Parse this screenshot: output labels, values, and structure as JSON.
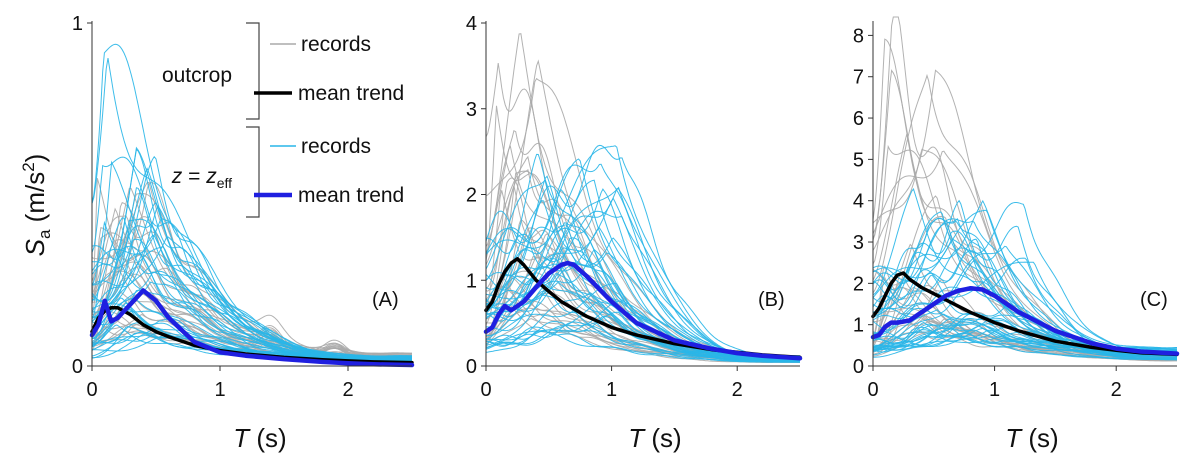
{
  "chart_data": [
    {
      "type": "line",
      "panel_label": "(A)",
      "xlim": [
        0,
        2.5
      ],
      "ylim": [
        0,
        1
      ],
      "x_ticks": [
        0,
        1,
        2
      ],
      "y_ticks": [
        0,
        1
      ],
      "xlabel": {
        "symbol": "T",
        "unit": " (s)"
      },
      "ylabel": {
        "symbol": "S",
        "sub": "a",
        "unit_pre": " (m/s",
        "unit_sup": "2",
        "unit_post": ")"
      },
      "legend": {
        "outcrop_label": "outcrop",
        "depth_label": {
          "z": "z",
          "eq": " = ",
          "zeff": "z",
          "sub": "eff"
        },
        "entries": [
          {
            "group": "outcrop",
            "name": "records",
            "color": "#aaaaaa"
          },
          {
            "group": "outcrop",
            "name": "mean trend",
            "color": "#000000"
          },
          {
            "group": "zeff",
            "name": "records",
            "color": "#29b6e8"
          },
          {
            "group": "zeff",
            "name": "mean trend",
            "color": "#1f1fe0"
          }
        ]
      },
      "series": [
        {
          "name": "outcrop mean trend",
          "color": "#000000",
          "x": [
            0,
            0.05,
            0.1,
            0.15,
            0.2,
            0.3,
            0.4,
            0.5,
            0.6,
            0.8,
            1.0,
            1.2,
            1.5,
            1.8,
            2.0,
            2.2,
            2.5
          ],
          "y": [
            0.1,
            0.14,
            0.16,
            0.17,
            0.17,
            0.15,
            0.12,
            0.1,
            0.085,
            0.06,
            0.045,
            0.035,
            0.025,
            0.018,
            0.015,
            0.012,
            0.01
          ]
        },
        {
          "name": "z = zeff mean trend",
          "color": "#1f1fe0",
          "x": [
            0,
            0.05,
            0.1,
            0.15,
            0.2,
            0.3,
            0.4,
            0.5,
            0.6,
            0.8,
            1.0,
            1.2,
            1.5,
            1.8,
            2.0,
            2.2,
            2.5
          ],
          "y": [
            0.09,
            0.12,
            0.19,
            0.13,
            0.14,
            0.18,
            0.22,
            0.19,
            0.14,
            0.07,
            0.04,
            0.03,
            0.02,
            0.012,
            0.008,
            0.005,
            0.003
          ]
        }
      ],
      "records": {
        "outcrop": {
          "color": "#aaaaaa",
          "count": 28,
          "peak_T_range": [
            0.04,
            0.45
          ],
          "peak_Sa_range": [
            0.12,
            0.55
          ],
          "tail": 0.025,
          "secondary_bumps": [
            [
              1.4,
              0.09
            ],
            [
              1.9,
              0.07
            ]
          ]
        },
        "zeff": {
          "color": "#29b6e8",
          "count": 40,
          "peak_T_range": [
            0.05,
            0.6
          ],
          "peak_Sa_range": [
            0.08,
            0.58
          ],
          "tail": 0.02,
          "spikes": [
            [
              0.09,
              1.0
            ],
            [
              0.12,
              0.9
            ],
            [
              0.08,
              0.7
            ]
          ]
        }
      }
    },
    {
      "type": "line",
      "panel_label": "(B)",
      "xlim": [
        0,
        2.5
      ],
      "ylim": [
        0,
        4
      ],
      "x_ticks": [
        0,
        1,
        2
      ],
      "y_ticks": [
        0,
        1,
        2,
        3,
        4
      ],
      "xlabel": {
        "symbol": "T",
        "unit": " (s)"
      },
      "series": [
        {
          "name": "outcrop mean trend",
          "color": "#000000",
          "x": [
            0,
            0.05,
            0.1,
            0.15,
            0.2,
            0.25,
            0.3,
            0.4,
            0.5,
            0.6,
            0.8,
            1.0,
            1.2,
            1.5,
            1.8,
            2.0,
            2.2,
            2.5
          ],
          "y": [
            0.65,
            0.75,
            0.95,
            1.1,
            1.2,
            1.25,
            1.18,
            1.0,
            0.87,
            0.75,
            0.58,
            0.45,
            0.36,
            0.26,
            0.19,
            0.16,
            0.13,
            0.1
          ]
        },
        {
          "name": "z = zeff mean trend",
          "color": "#1f1fe0",
          "x": [
            0,
            0.05,
            0.1,
            0.15,
            0.2,
            0.3,
            0.4,
            0.5,
            0.6,
            0.65,
            0.7,
            0.8,
            1.0,
            1.2,
            1.5,
            1.8,
            2.0,
            2.2,
            2.5
          ],
          "y": [
            0.4,
            0.45,
            0.6,
            0.7,
            0.65,
            0.75,
            0.92,
            1.08,
            1.18,
            1.2,
            1.18,
            1.05,
            0.75,
            0.5,
            0.3,
            0.2,
            0.15,
            0.12,
            0.09
          ]
        }
      ],
      "records": {
        "outcrop": {
          "color": "#aaaaaa",
          "count": 30,
          "peak_T_range": [
            0.08,
            0.5
          ],
          "peak_Sa_range": [
            0.6,
            3.9
          ],
          "tail": 0.08
        },
        "zeff": {
          "color": "#29b6e8",
          "count": 40,
          "peak_T_range": [
            0.3,
            1.1
          ],
          "peak_Sa_range": [
            0.4,
            2.7
          ],
          "tail": 0.08
        }
      }
    },
    {
      "type": "line",
      "panel_label": "(C)",
      "xlim": [
        0,
        2.5
      ],
      "ylim": [
        0,
        8.3
      ],
      "x_ticks": [
        0,
        1,
        2
      ],
      "y_ticks": [
        0,
        1,
        2,
        3,
        4,
        5,
        6,
        7,
        8
      ],
      "xlabel": {
        "symbol": "T",
        "unit": " (s)"
      },
      "series": [
        {
          "name": "outcrop mean trend",
          "color": "#000000",
          "x": [
            0,
            0.05,
            0.1,
            0.15,
            0.2,
            0.25,
            0.3,
            0.4,
            0.5,
            0.6,
            0.8,
            1.0,
            1.2,
            1.5,
            1.8,
            2.0,
            2.2,
            2.5
          ],
          "y": [
            1.2,
            1.4,
            1.7,
            2.0,
            2.2,
            2.25,
            2.1,
            1.9,
            1.75,
            1.6,
            1.3,
            1.05,
            0.85,
            0.6,
            0.45,
            0.38,
            0.32,
            0.28
          ]
        },
        {
          "name": "z = zeff mean trend",
          "color": "#1f1fe0",
          "x": [
            0,
            0.05,
            0.1,
            0.15,
            0.2,
            0.3,
            0.4,
            0.5,
            0.6,
            0.7,
            0.8,
            0.9,
            1.0,
            1.2,
            1.5,
            1.8,
            2.0,
            2.2,
            2.5
          ],
          "y": [
            0.7,
            0.75,
            0.95,
            1.05,
            1.05,
            1.1,
            1.3,
            1.5,
            1.7,
            1.82,
            1.88,
            1.85,
            1.7,
            1.3,
            0.85,
            0.55,
            0.42,
            0.35,
            0.3
          ]
        }
      ],
      "records": {
        "outcrop": {
          "color": "#aaaaaa",
          "count": 28,
          "peak_T_range": [
            0.08,
            0.6
          ],
          "peak_Sa_range": [
            1.0,
            8.2
          ],
          "tail": 0.25
        },
        "zeff": {
          "color": "#29b6e8",
          "count": 40,
          "peak_T_range": [
            0.3,
            1.4
          ],
          "peak_Sa_range": [
            0.8,
            4.0
          ],
          "tail": 0.3
        }
      }
    }
  ]
}
